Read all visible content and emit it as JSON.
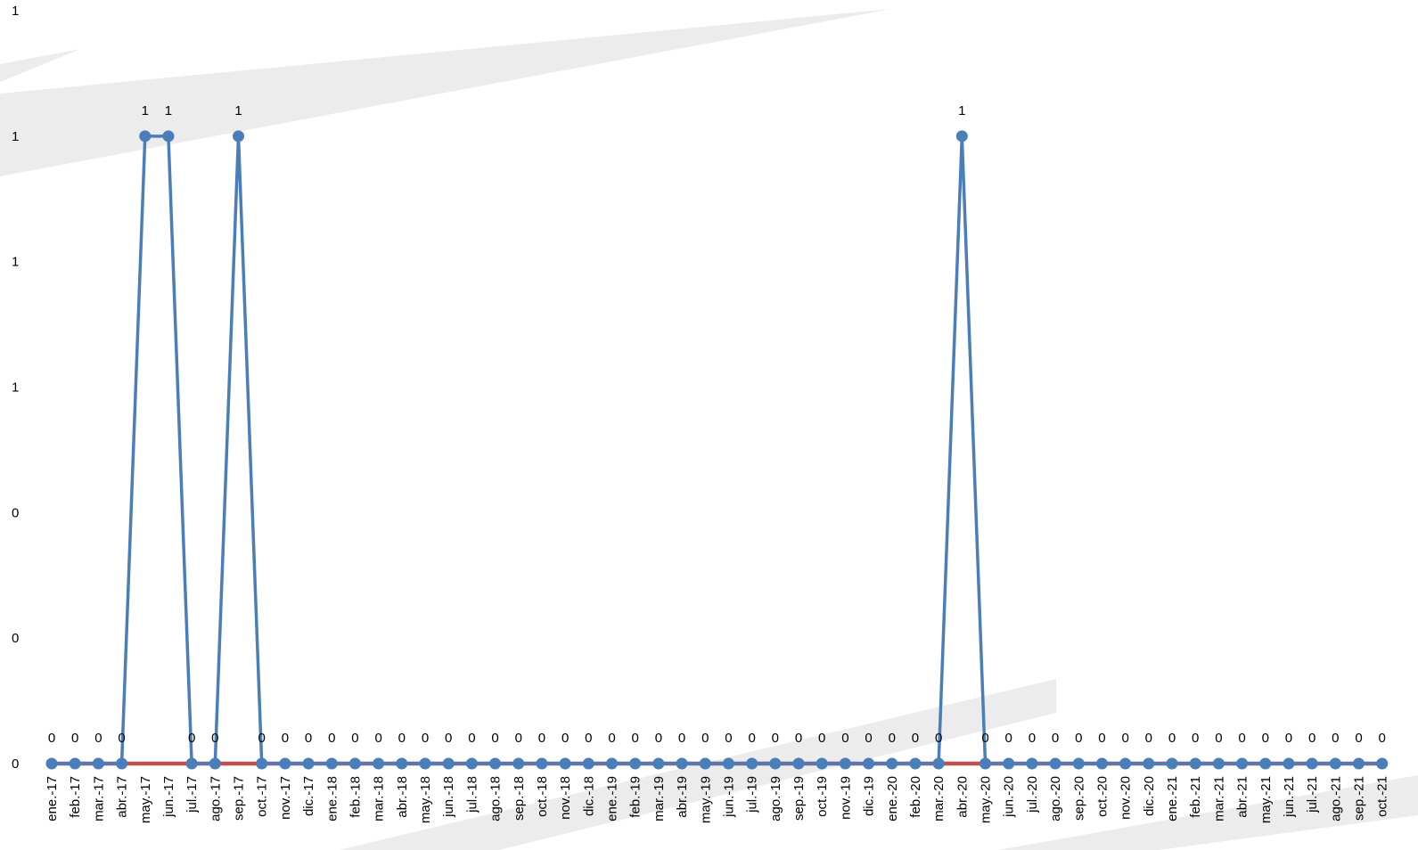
{
  "chart_data": {
    "type": "line",
    "title": "",
    "xlabel": "",
    "ylabel": "",
    "ylim": [
      0,
      1.2
    ],
    "y_tick_values": [
      0,
      0.2,
      0.4,
      0.6,
      0.8,
      1.0,
      1.2
    ],
    "y_tick_labels": [
      "0",
      "0",
      "0",
      "1",
      "1",
      "1",
      "1"
    ],
    "grid": false,
    "legend": "none",
    "categories": [
      "ene.-17",
      "feb.-17",
      "mar.-17",
      "abr.-17",
      "may.-17",
      "jun.-17",
      "jul.-17",
      "ago.-17",
      "sep.-17",
      "oct.-17",
      "nov.-17",
      "dic.-17",
      "ene.-18",
      "feb.-18",
      "mar.-18",
      "abr.-18",
      "may.-18",
      "jun.-18",
      "jul.-18",
      "ago.-18",
      "sep.-18",
      "oct.-18",
      "nov.-18",
      "dic.-18",
      "ene.-19",
      "feb.-19",
      "mar.-19",
      "abr.-19",
      "may.-19",
      "jun.-19",
      "jul.-19",
      "ago.-19",
      "sep.-19",
      "oct.-19",
      "nov.-19",
      "dic.-19",
      "ene.-20",
      "feb.-20",
      "mar.-20",
      "abr.-20",
      "may.-20",
      "jun.-20",
      "jul.-20",
      "ago.-20",
      "sep.-20",
      "oct.-20",
      "nov.-20",
      "dic.-20",
      "ene.-21",
      "feb.-21",
      "mar.-21",
      "abr.-21",
      "may.-21",
      "jun.-21",
      "jul.-21",
      "ago.-21",
      "sep.-21",
      "oct.-21"
    ],
    "series": [
      {
        "color": "#4a7ebb",
        "markers": true,
        "data_labels": true,
        "values": [
          0,
          0,
          0,
          0,
          1,
          1,
          0,
          0,
          1,
          0,
          0,
          0,
          0,
          0,
          0,
          0,
          0,
          0,
          0,
          0,
          0,
          0,
          0,
          0,
          0,
          0,
          0,
          0,
          0,
          0,
          0,
          0,
          0,
          0,
          0,
          0,
          0,
          0,
          0,
          1,
          0,
          0,
          0,
          0,
          0,
          0,
          0,
          0,
          0,
          0,
          0,
          0,
          0,
          0,
          0,
          0,
          0,
          0
        ]
      },
      {
        "color": "#c0504d",
        "markers": false,
        "data_labels": false,
        "values": [
          0,
          0,
          0,
          0,
          0,
          0,
          0,
          0,
          0,
          0,
          0,
          0,
          0,
          0,
          0,
          0,
          0,
          0,
          0,
          0,
          0,
          0,
          0,
          0,
          0,
          0,
          0,
          0,
          0,
          0,
          0,
          0,
          0,
          0,
          0,
          0,
          0,
          0,
          0,
          0,
          0,
          0,
          0,
          0,
          0,
          0,
          0,
          0,
          0,
          0,
          0,
          0,
          0,
          0,
          0,
          0,
          0,
          0
        ]
      }
    ],
    "data_label_texts": [
      "0",
      "0",
      "0",
      "0",
      "1",
      "1",
      "0",
      "0",
      "1",
      "0",
      "0",
      "0",
      "0",
      "0",
      "0",
      "0",
      "0",
      "0",
      "0",
      "0",
      "0",
      "0",
      "0",
      "0",
      "0",
      "0",
      "0",
      "0",
      "0",
      "0",
      "0",
      "0",
      "0",
      "0",
      "0",
      "0",
      "0",
      "0",
      "0",
      "1",
      "0",
      "0",
      "0",
      "0",
      "0",
      "0",
      "0",
      "0",
      "0",
      "0",
      "0",
      "0",
      "0",
      "0",
      "0",
      "0",
      "0",
      "0"
    ]
  }
}
